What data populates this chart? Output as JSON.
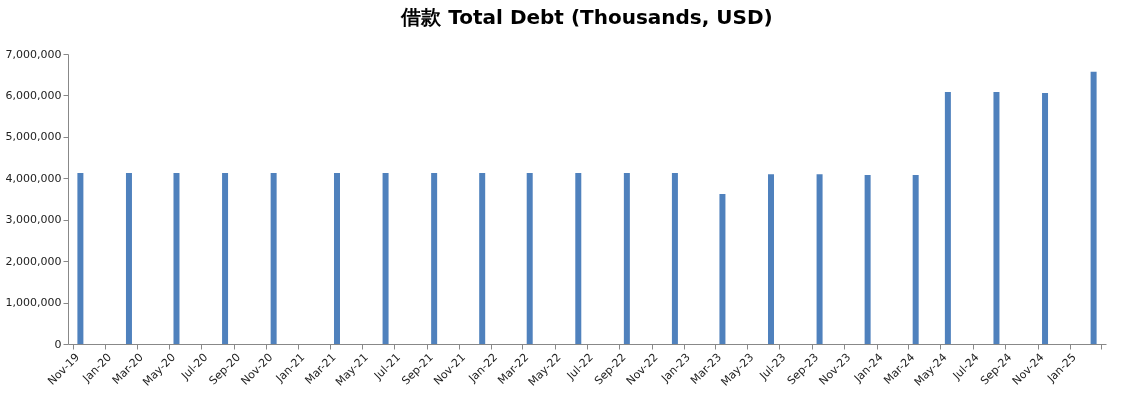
{
  "chart_data": {
    "type": "bar",
    "title": "借款 Total Debt (Thousands, USD)",
    "x": [
      "2019-11-15",
      "2020-02-15",
      "2020-05-15",
      "2020-08-15",
      "2020-11-15",
      "2021-03-15",
      "2021-06-15",
      "2021-09-15",
      "2021-12-15",
      "2022-03-15",
      "2022-06-15",
      "2022-09-15",
      "2022-12-15",
      "2023-03-15",
      "2023-06-15",
      "2023-09-15",
      "2023-12-15",
      "2024-03-15",
      "2024-05-15",
      "2024-08-15",
      "2024-11-15",
      "2025-02-15"
    ],
    "series": [
      {
        "color": "#4f81bd",
        "values": [
          4130000,
          4130000,
          4130000,
          4130000,
          4130000,
          4130000,
          4130000,
          4130000,
          4130000,
          4130000,
          4130000,
          4130000,
          4130000,
          3620000,
          4100000,
          4100000,
          4080000,
          4080000,
          6080000,
          6080000,
          6060000,
          6570000
        ]
      }
    ],
    "xlim": [
      "2019-11",
      "2025-03"
    ],
    "xticks": [
      {
        "value": "2019-11",
        "label": "Nov-19"
      },
      {
        "value": "2020-01",
        "label": "Jan-20"
      },
      {
        "value": "2020-03",
        "label": "Mar-20"
      },
      {
        "value": "2020-05",
        "label": "May-20"
      },
      {
        "value": "2020-07",
        "label": "Jul-20"
      },
      {
        "value": "2020-09",
        "label": "Sep-20"
      },
      {
        "value": "2020-11",
        "label": "Nov-20"
      },
      {
        "value": "2021-01",
        "label": "Jan-21"
      },
      {
        "value": "2021-03",
        "label": "Mar-21"
      },
      {
        "value": "2021-05",
        "label": "May-21"
      },
      {
        "value": "2021-07",
        "label": "Jul-21"
      },
      {
        "value": "2021-09",
        "label": "Sep-21"
      },
      {
        "value": "2021-11",
        "label": "Nov-21"
      },
      {
        "value": "2022-01",
        "label": "Jan-22"
      },
      {
        "value": "2022-03",
        "label": "Mar-22"
      },
      {
        "value": "2022-05",
        "label": "May-22"
      },
      {
        "value": "2022-07",
        "label": "Jul-22"
      },
      {
        "value": "2022-09",
        "label": "Sep-22"
      },
      {
        "value": "2022-11",
        "label": "Nov-22"
      },
      {
        "value": "2023-01",
        "label": "Jan-23"
      },
      {
        "value": "2023-03",
        "label": "Mar-23"
      },
      {
        "value": "2023-05",
        "label": "May-23"
      },
      {
        "value": "2023-07",
        "label": "Jul-23"
      },
      {
        "value": "2023-09",
        "label": "Sep-23"
      },
      {
        "value": "2023-11",
        "label": "Nov-23"
      },
      {
        "value": "2024-01",
        "label": "Jan-24"
      },
      {
        "value": "2024-03",
        "label": "Mar-24"
      },
      {
        "value": "2024-05",
        "label": "May-24"
      },
      {
        "value": "2024-07",
        "label": "Jul-24"
      },
      {
        "value": "2024-09",
        "label": "Sep-24"
      },
      {
        "value": "2024-11",
        "label": "Nov-24"
      },
      {
        "value": "2025-01",
        "label": "Jan-25"
      },
      {
        "value": "2025-03",
        "label": null
      }
    ],
    "ylim": [
      0,
      7000000
    ],
    "yticks": [
      0,
      {
        "value": 1000000,
        "label": "1,000,000"
      },
      {
        "value": 2000000,
        "label": "2,000,000"
      },
      {
        "value": 3000000,
        "label": "3,000,000"
      },
      {
        "value": 4000000,
        "label": "4,000,000"
      },
      {
        "value": 5000000,
        "label": "5,000,000"
      },
      {
        "value": 6000000,
        "label": "6,000,000"
      },
      {
        "value": 7000000,
        "label": "7,000,000"
      }
    ],
    "grid": false
  }
}
